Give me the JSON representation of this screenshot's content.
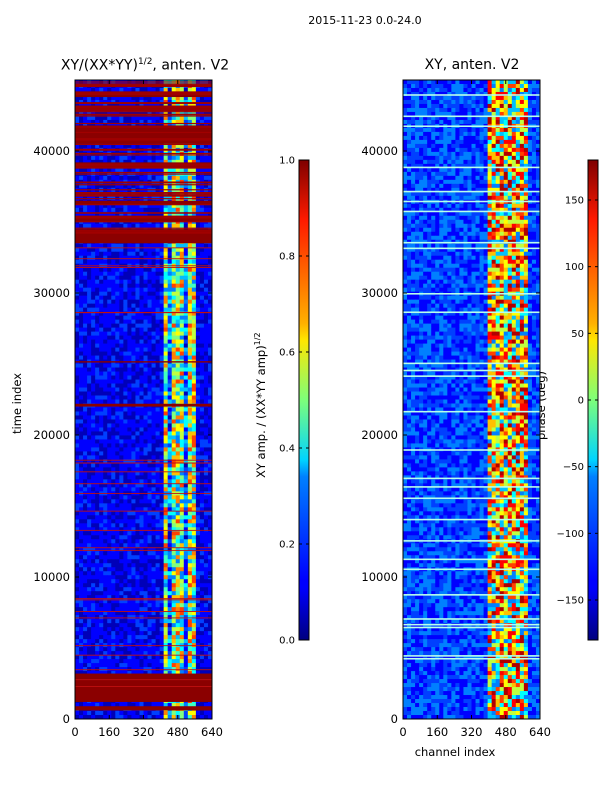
{
  "figure": {
    "suptitle": "2015-11-23 0.0-24.0"
  },
  "chart_data": [
    {
      "type": "heatmap",
      "title_prefix": "XY/(XX*YY)",
      "title_exp": "1/2",
      "title_suffix": ", anten. V2",
      "xlabel": "",
      "ylabel": "time index",
      "xlim": [
        0,
        640
      ],
      "ylim": [
        0,
        45000
      ],
      "xticks": [
        0,
        160,
        320,
        480,
        640
      ],
      "yticks": [
        0,
        10000,
        20000,
        30000,
        40000
      ],
      "colorbar": {
        "label_prefix": "XY amp. / (XX*YY amp)",
        "label_exp": "1/2",
        "range": [
          0.0,
          1.0
        ],
        "ticks": [
          0.0,
          0.2,
          0.4,
          0.6,
          0.8,
          1.0
        ],
        "tick_labels": [
          "0.0",
          "0.2",
          "0.4",
          "0.6",
          "0.8",
          "1.0"
        ]
      }
    },
    {
      "type": "heatmap",
      "title": "XY, anten. V2",
      "xlabel": "channel index",
      "ylabel": "",
      "xlim": [
        0,
        640
      ],
      "ylim": [
        0,
        45000
      ],
      "xticks": [
        0,
        160,
        320,
        480,
        640
      ],
      "yticks": [
        0,
        10000,
        20000,
        30000,
        40000
      ],
      "colorbar": {
        "label": "phase (deg)",
        "range": [
          -180,
          180
        ],
        "ticks": [
          -150,
          -100,
          -50,
          0,
          50,
          100,
          150
        ],
        "tick_labels": [
          "−150",
          "−100",
          "−50",
          "0",
          "50",
          "100",
          "150"
        ]
      }
    }
  ]
}
